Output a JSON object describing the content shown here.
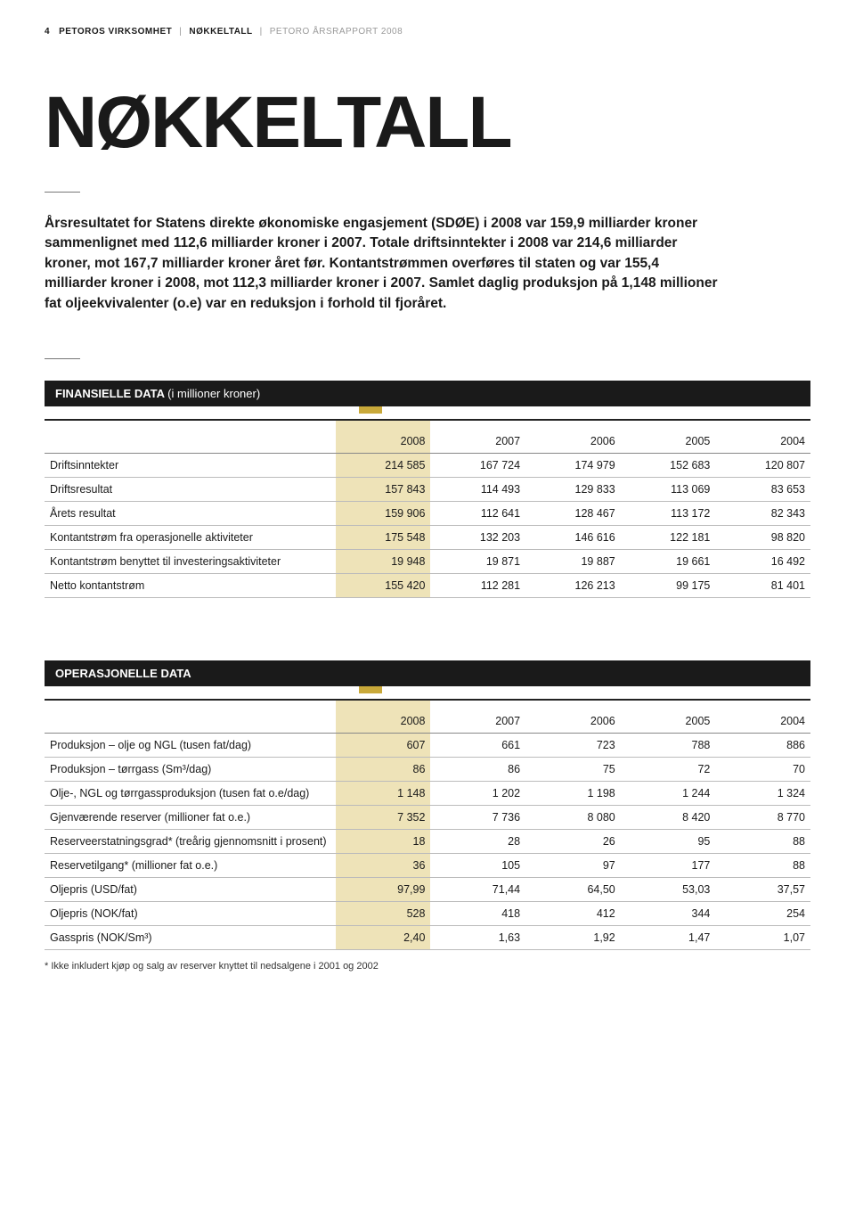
{
  "header": {
    "page_number": "4",
    "crumb1": "PETOROS VIRKSOMHET",
    "crumb2": "NØKKELTALL",
    "crumb3": "PETORO ÅRSRAPPORT 2008"
  },
  "title": "NØKKELTALL",
  "intro": "Årsresultatet for Statens direkte økonomiske engasjement (SDØE) i 2008 var 159,9 milliarder kroner sammenlignet med 112,6 milliarder kroner i 2007. Totale driftsinntekter i 2008 var 214,6 milliarder kroner, mot 167,7 milliarder kroner året før. Kontantstrømmen overføres til staten og var 155,4 milliarder kroner i 2008, mot 112,3 milliarder kroner i 2007. Samlet daglig produksjon på 1,148 millioner fat oljeekvivalenter (o.e) var en reduksjon i forhold til fjoråret.",
  "fin_table": {
    "heading_strong": "FINANSIELLE DATA",
    "heading_light": "(i millioner kroner)",
    "columns": [
      "",
      "2008",
      "2007",
      "2006",
      "2005",
      "2004"
    ],
    "highlight_col_index": 1,
    "rows": [
      [
        "Driftsinntekter",
        "214 585",
        "167 724",
        "174 979",
        "152 683",
        "120 807"
      ],
      [
        "Driftsresultat",
        "157 843",
        "114 493",
        "129 833",
        "113 069",
        "83 653"
      ],
      [
        "Årets resultat",
        "159 906",
        "112 641",
        "128 467",
        "113 172",
        "82 343"
      ],
      [
        "Kontantstrøm fra operasjonelle aktiviteter",
        "175 548",
        "132 203",
        "146 616",
        "122 181",
        "98 820"
      ],
      [
        "Kontantstrøm benyttet til investeringsaktiviteter",
        "19 948",
        "19 871",
        "19 887",
        "19 661",
        "16 492"
      ],
      [
        "Netto kontantstrøm",
        "155 420",
        "112 281",
        "126 213",
        "99 175",
        "81 401"
      ]
    ]
  },
  "op_table": {
    "heading_strong": "OPERASJONELLE DATA",
    "columns": [
      "",
      "2008",
      "2007",
      "2006",
      "2005",
      "2004"
    ],
    "highlight_col_index": 1,
    "rows": [
      [
        "Produksjon – olje og NGL (tusen fat/dag)",
        "607",
        "661",
        "723",
        "788",
        "886"
      ],
      [
        "Produksjon – tørrgass (Sm³/dag)",
        "86",
        "86",
        "75",
        "72",
        "70"
      ],
      [
        "Olje-, NGL og tørrgassproduksjon (tusen fat o.e/dag)",
        "1 148",
        "1 202",
        "1 198",
        "1 244",
        "1 324"
      ],
      [
        "Gjenværende reserver (millioner fat o.e.)",
        "7 352",
        "7 736",
        "8 080",
        "8 420",
        "8 770"
      ],
      [
        "Reserveerstatningsgrad* (treårig gjennomsnitt i prosent)",
        "18",
        "28",
        "26",
        "95",
        "88"
      ],
      [
        "Reservetilgang* (millioner fat o.e.)",
        "36",
        "105",
        "97",
        "177",
        "88"
      ],
      [
        "Oljepris (USD/fat)",
        "97,99",
        "71,44",
        "64,50",
        "53,03",
        "37,57"
      ],
      [
        "Oljepris (NOK/fat)",
        "528",
        "418",
        "412",
        "344",
        "254"
      ],
      [
        "Gasspris (NOK/Sm³)",
        "2,40",
        "1,63",
        "1,92",
        "1,47",
        "1,07"
      ]
    ]
  },
  "footnote": "* Ikke inkludert kjøp og salg av reserver knyttet til nedsalgene i 2001 og 2002",
  "colors": {
    "text": "#1a1a1a",
    "bg": "#ffffff",
    "highlight_bg": "#eee3b8",
    "gold": "#c9a93a",
    "border": "#bbbbbb",
    "muted": "#999999"
  }
}
